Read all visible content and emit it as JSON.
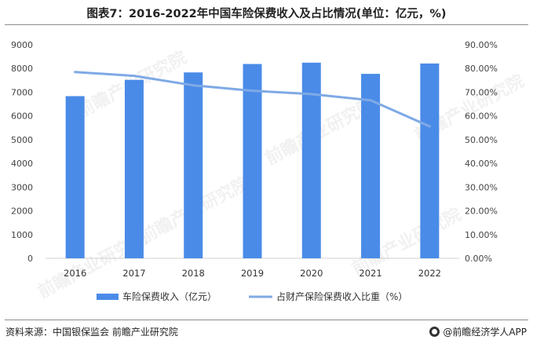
{
  "title": "图表7：2016-2022年中国车险保费收入及占比情况(单位：亿元，%)",
  "chart_data": {
    "type": "bar",
    "categories": [
      "2016",
      "2017",
      "2018",
      "2019",
      "2020",
      "2021",
      "2022"
    ],
    "series": [
      {
        "name": "车险保费收入（亿元）",
        "type": "bar",
        "axis": "left",
        "values": [
          6834,
          7521,
          7834,
          8189,
          8245,
          7773,
          8210
        ]
      },
      {
        "name": "占财产保险保费收入比重（%）",
        "type": "line",
        "axis": "right",
        "values": [
          78.5,
          76.9,
          72.9,
          70.6,
          69.2,
          66.6,
          55.6
        ]
      }
    ],
    "ylim_left": [
      0,
      9000
    ],
    "ylim_right": [
      0,
      90
    ],
    "yticks_left": [
      "0",
      "1000",
      "2000",
      "3000",
      "4000",
      "5000",
      "6000",
      "7000",
      "8000",
      "9000"
    ],
    "yticks_right": [
      "0.00%",
      "10.00%",
      "20.00%",
      "30.00%",
      "40.00%",
      "50.00%",
      "60.00%",
      "70.00%",
      "80.00%",
      "90.00%"
    ],
    "bar_color": "#4a8be8",
    "line_color": "#7fa9e6",
    "legend_position": "bottom"
  },
  "watermark": "前瞻产业研究院",
  "footer": {
    "source": "资料来源：中国银保监会 前瞻产业研究院",
    "brand": "@前瞻经济学人APP"
  }
}
